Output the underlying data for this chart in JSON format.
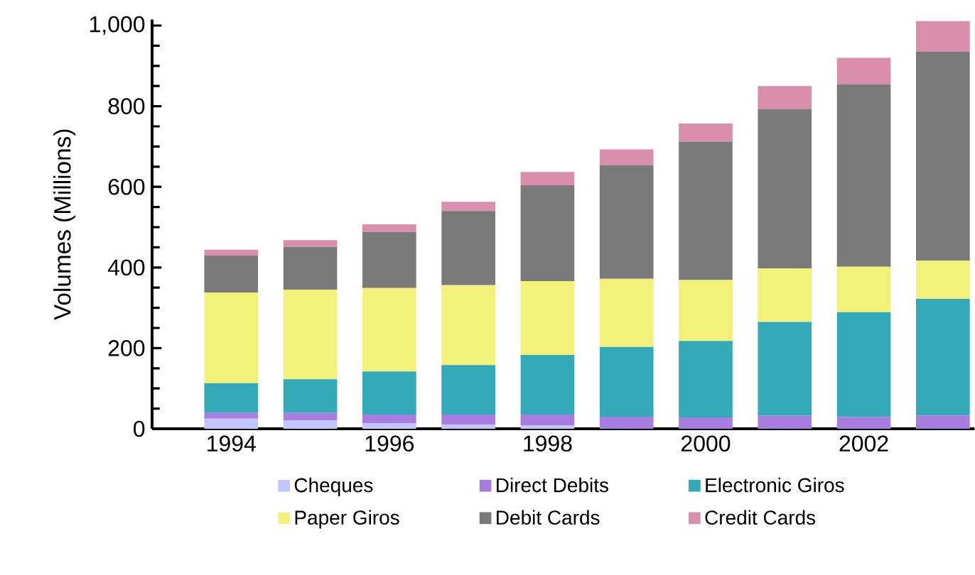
{
  "chart_data": {
    "type": "bar",
    "stacked": true,
    "ylabel": "Volumes (Millions)",
    "categories": [
      "1994",
      null,
      "1996",
      null,
      "1998",
      null,
      "2000",
      null,
      "2002",
      null
    ],
    "series": [
      {
        "name": "Cheques",
        "color": "#c4c4ff",
        "values": [
          25,
          21,
          14,
          10,
          8,
          null,
          null,
          null,
          null,
          null
        ]
      },
      {
        "name": "Direct Debits",
        "color": "#a77ee0",
        "values": [
          14,
          18,
          21,
          25,
          27,
          30,
          28,
          32,
          29,
          33
        ]
      },
      {
        "name": "Electronic Giros",
        "color": "#34a9b8",
        "values": [
          74,
          84,
          107,
          123,
          148,
          173,
          190,
          233,
          260,
          289
        ]
      },
      {
        "name": "Paper Giros",
        "color": "#f2f27a",
        "values": [
          225,
          222,
          207,
          198,
          183,
          169,
          151,
          133,
          113,
          95
        ]
      },
      {
        "name": "Debit Cards",
        "color": "#7a7a7a",
        "values": [
          92,
          106,
          139,
          184,
          238,
          282,
          343,
          395,
          452,
          518
        ]
      },
      {
        "name": "Credit Cards",
        "color": "#d98eac",
        "values": [
          14,
          17,
          19,
          23,
          33,
          39,
          45,
          57,
          66,
          76
        ]
      }
    ],
    "ylim": [
      0,
      1015
    ],
    "yticks": [
      0,
      200,
      400,
      600,
      800,
      {
        "value": 1000,
        "label": "1,000"
      }
    ],
    "legend": "bottom"
  }
}
